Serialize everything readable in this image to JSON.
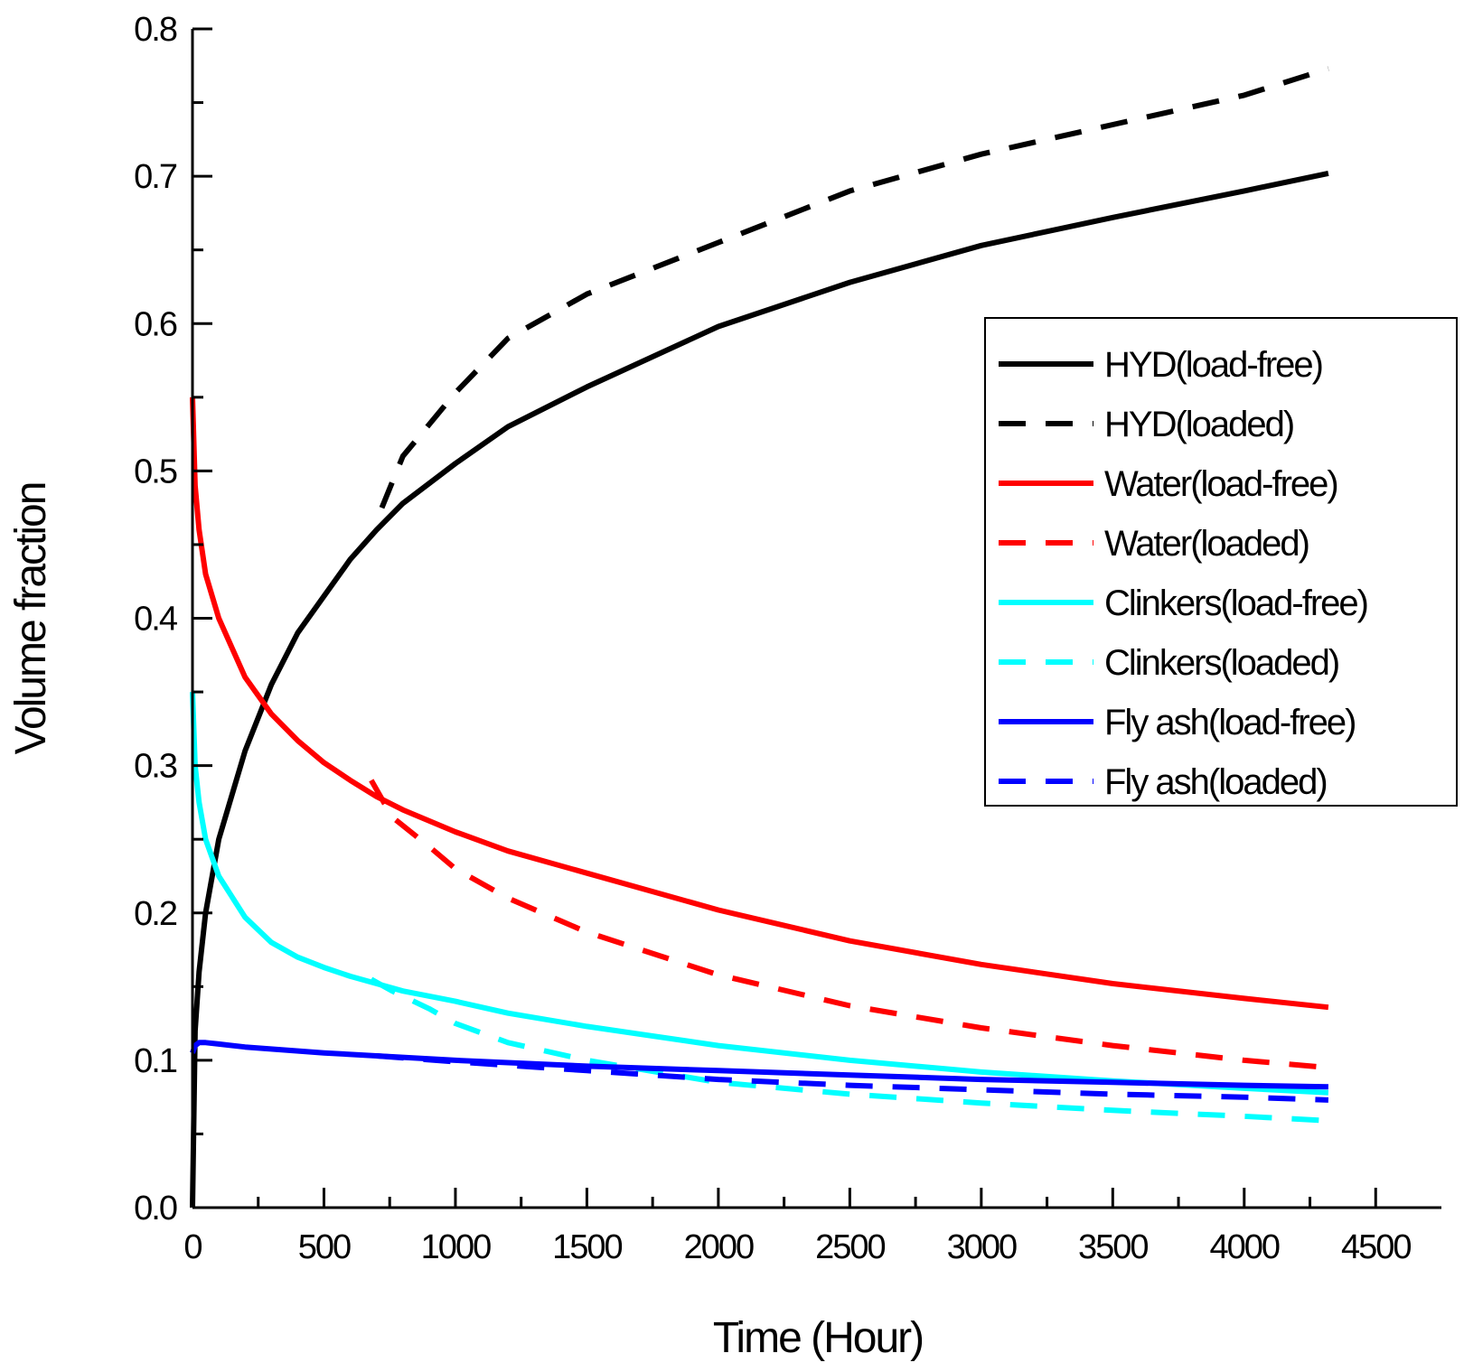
{
  "chart_data": {
    "type": "line",
    "title": "",
    "xlabel": "Time (Hour)",
    "ylabel": "Volume fraction",
    "xlim": [
      0,
      4750
    ],
    "ylim": [
      0,
      0.8
    ],
    "xticks": [
      0,
      500,
      1000,
      1500,
      2000,
      2500,
      3000,
      3500,
      4000,
      4500
    ],
    "xtick_labels": [
      "0",
      "500",
      "1000",
      "1500",
      "2000",
      "2500",
      "3000",
      "3500",
      "4000",
      "4500"
    ],
    "yticks": [
      0.0,
      0.1,
      0.2,
      0.3,
      0.4,
      0.5,
      0.6,
      0.7,
      0.8
    ],
    "ytick_labels": [
      "0.0",
      "0.1",
      "0.2",
      "0.3",
      "0.4",
      "0.5",
      "0.6",
      "0.7",
      "0.8"
    ],
    "grid": false,
    "legend_position": "right",
    "series": [
      {
        "name": "HYD(load-free)",
        "color": "#000000",
        "style": "solid",
        "x": [
          0,
          10,
          25,
          50,
          100,
          200,
          300,
          400,
          500,
          600,
          700,
          800,
          1000,
          1200,
          1500,
          2000,
          2500,
          3000,
          3500,
          4000,
          4320
        ],
        "y": [
          0.0,
          0.12,
          0.16,
          0.2,
          0.25,
          0.31,
          0.355,
          0.39,
          0.415,
          0.44,
          0.46,
          0.478,
          0.505,
          0.53,
          0.557,
          0.598,
          0.628,
          0.653,
          0.672,
          0.69,
          0.702
        ]
      },
      {
        "name": "HYD(loaded)",
        "color": "#000000",
        "style": "dashed",
        "x": [
          720,
          800,
          1000,
          1200,
          1500,
          2000,
          2500,
          3000,
          3500,
          4000,
          4320
        ],
        "y": [
          0.475,
          0.51,
          0.553,
          0.59,
          0.62,
          0.655,
          0.69,
          0.715,
          0.735,
          0.755,
          0.773
        ]
      },
      {
        "name": "Water(load-free)",
        "color": "#ff0000",
        "style": "solid",
        "x": [
          0,
          10,
          25,
          50,
          100,
          200,
          300,
          400,
          500,
          600,
          700,
          800,
          1000,
          1200,
          1500,
          2000,
          2500,
          3000,
          3500,
          4000,
          4320
        ],
        "y": [
          0.55,
          0.49,
          0.46,
          0.43,
          0.4,
          0.36,
          0.335,
          0.317,
          0.302,
          0.29,
          0.279,
          0.27,
          0.255,
          0.242,
          0.227,
          0.202,
          0.181,
          0.165,
          0.152,
          0.142,
          0.136
        ]
      },
      {
        "name": "Water(loaded)",
        "color": "#ff0000",
        "style": "dashed",
        "x": [
          680,
          760,
          900,
          1000,
          1200,
          1500,
          2000,
          2500,
          3000,
          3500,
          4000,
          4320
        ],
        "y": [
          0.29,
          0.265,
          0.245,
          0.23,
          0.21,
          0.187,
          0.158,
          0.137,
          0.122,
          0.11,
          0.1,
          0.095
        ]
      },
      {
        "name": "Clinkers(load-free)",
        "color": "#00ffff",
        "style": "solid",
        "x": [
          0,
          10,
          25,
          50,
          100,
          200,
          300,
          400,
          500,
          600,
          700,
          800,
          1000,
          1200,
          1500,
          2000,
          2500,
          3000,
          3500,
          4000,
          4320
        ],
        "y": [
          0.35,
          0.3,
          0.275,
          0.25,
          0.225,
          0.197,
          0.18,
          0.17,
          0.163,
          0.157,
          0.152,
          0.147,
          0.14,
          0.132,
          0.123,
          0.11,
          0.1,
          0.092,
          0.086,
          0.081,
          0.078
        ]
      },
      {
        "name": "Clinkers(loaded)",
        "color": "#00ffff",
        "style": "dashed",
        "x": [
          680,
          760,
          900,
          1000,
          1200,
          1500,
          2000,
          2500,
          3000,
          3500,
          4000,
          4320
        ],
        "y": [
          0.155,
          0.147,
          0.135,
          0.125,
          0.112,
          0.1,
          0.085,
          0.077,
          0.071,
          0.066,
          0.062,
          0.059
        ]
      },
      {
        "name": "Fly ash(load-free)",
        "color": "#0000ff",
        "style": "solid",
        "x": [
          0,
          10,
          25,
          50,
          100,
          200,
          500,
          1000,
          1500,
          2000,
          2500,
          3000,
          3500,
          4000,
          4320
        ],
        "y": [
          0.105,
          0.11,
          0.112,
          0.112,
          0.111,
          0.109,
          0.105,
          0.1,
          0.096,
          0.093,
          0.09,
          0.087,
          0.085,
          0.083,
          0.082
        ]
      },
      {
        "name": "Fly ash(loaded)",
        "color": "#0000ff",
        "style": "dashed",
        "x": [
          700,
          1000,
          1500,
          2000,
          2500,
          3000,
          3500,
          4000,
          4320
        ],
        "y": [
          0.103,
          0.099,
          0.093,
          0.087,
          0.083,
          0.08,
          0.077,
          0.075,
          0.073
        ]
      }
    ]
  }
}
